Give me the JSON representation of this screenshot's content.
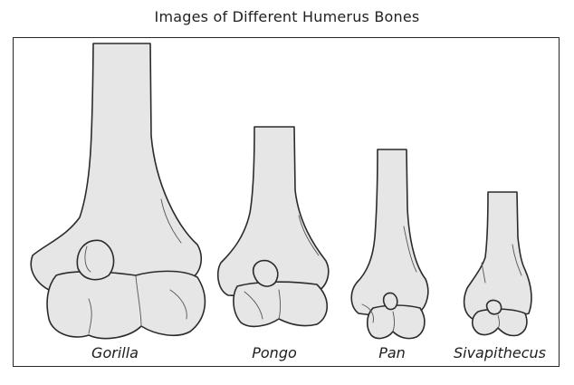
{
  "title": "Images of Different Humerus Bones",
  "colors": {
    "bone_fill": "#e6e6e6",
    "bone_stroke": "#2b2b2b",
    "frame": "#2a2a2a"
  },
  "bones": [
    {
      "label": "Gorilla"
    },
    {
      "label": "Pongo"
    },
    {
      "label": "Pan"
    },
    {
      "label": "Sivapithecus"
    }
  ]
}
